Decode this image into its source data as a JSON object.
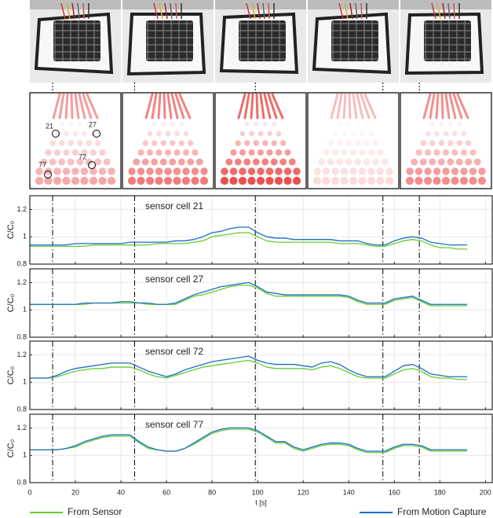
{
  "heatmap_labels": [
    "21",
    "27",
    "72",
    "77"
  ],
  "time_markers": [
    10,
    46,
    99,
    155,
    171
  ],
  "chart_data": [
    {
      "type": "line",
      "title": "sensor cell 21",
      "ylabel": "C/C₀",
      "x": [
        0,
        4,
        8,
        12,
        16,
        20,
        24,
        28,
        32,
        36,
        40,
        44,
        48,
        52,
        56,
        60,
        64,
        68,
        72,
        76,
        80,
        84,
        88,
        92,
        96,
        100,
        104,
        108,
        112,
        116,
        120,
        124,
        128,
        132,
        136,
        140,
        144,
        148,
        152,
        156,
        160,
        164,
        168,
        172,
        176,
        180,
        184,
        188,
        192
      ],
      "series": [
        {
          "name": "From Sensor",
          "color": "#66cc33",
          "values": [
            0.93,
            0.93,
            0.93,
            0.93,
            0.93,
            0.93,
            0.93,
            0.94,
            0.94,
            0.94,
            0.94,
            0.94,
            0.94,
            0.94,
            0.95,
            0.95,
            0.95,
            0.95,
            0.96,
            0.97,
            1.0,
            1.01,
            1.02,
            1.03,
            1.03,
            1.0,
            0.97,
            0.96,
            0.96,
            0.96,
            0.96,
            0.96,
            0.96,
            0.96,
            0.95,
            0.95,
            0.95,
            0.94,
            0.93,
            0.93,
            0.95,
            0.97,
            0.98,
            0.97,
            0.94,
            0.92,
            0.92,
            0.91,
            0.91
          ]
        },
        {
          "name": "From Motion Capture",
          "color": "#1a6fc4",
          "values": [
            0.94,
            0.94,
            0.94,
            0.94,
            0.94,
            0.95,
            0.95,
            0.95,
            0.95,
            0.95,
            0.95,
            0.96,
            0.96,
            0.96,
            0.96,
            0.96,
            0.97,
            0.97,
            0.98,
            1.0,
            1.03,
            1.04,
            1.06,
            1.07,
            1.07,
            1.03,
            1.0,
            0.99,
            0.99,
            0.98,
            0.98,
            0.98,
            0.98,
            0.98,
            0.97,
            0.97,
            0.97,
            0.95,
            0.94,
            0.94,
            0.97,
            0.99,
            1.0,
            0.99,
            0.96,
            0.95,
            0.94,
            0.94,
            0.94
          ]
        }
      ],
      "xlim": [
        0,
        203
      ],
      "xticks": [
        0,
        20,
        40,
        60,
        80,
        100,
        120,
        140,
        160,
        180,
        200
      ],
      "ylim": [
        0.8,
        1.3
      ],
      "yticks": [
        0.8,
        1,
        1.2
      ],
      "grid": true
    },
    {
      "type": "line",
      "title": "sensor cell 27",
      "ylabel": "C/C₀",
      "x": [
        0,
        4,
        8,
        12,
        16,
        20,
        24,
        28,
        32,
        36,
        40,
        44,
        48,
        52,
        56,
        60,
        64,
        68,
        72,
        76,
        80,
        84,
        88,
        92,
        96,
        100,
        104,
        108,
        112,
        116,
        120,
        124,
        128,
        132,
        136,
        140,
        144,
        148,
        152,
        156,
        160,
        164,
        168,
        172,
        176,
        180,
        184,
        188,
        192
      ],
      "series": [
        {
          "name": "From Sensor",
          "color": "#66cc33",
          "values": [
            1.04,
            1.04,
            1.04,
            1.04,
            1.04,
            1.04,
            1.04,
            1.05,
            1.05,
            1.05,
            1.05,
            1.05,
            1.05,
            1.04,
            1.04,
            1.04,
            1.04,
            1.07,
            1.1,
            1.11,
            1.13,
            1.15,
            1.17,
            1.18,
            1.18,
            1.16,
            1.12,
            1.1,
            1.1,
            1.1,
            1.1,
            1.1,
            1.1,
            1.1,
            1.1,
            1.09,
            1.06,
            1.04,
            1.04,
            1.04,
            1.07,
            1.08,
            1.09,
            1.06,
            1.03,
            1.03,
            1.03,
            1.03,
            1.03
          ]
        },
        {
          "name": "From Motion Capture",
          "color": "#1a6fc4",
          "values": [
            1.04,
            1.04,
            1.04,
            1.04,
            1.04,
            1.04,
            1.05,
            1.05,
            1.05,
            1.05,
            1.06,
            1.06,
            1.05,
            1.05,
            1.04,
            1.04,
            1.05,
            1.08,
            1.11,
            1.13,
            1.15,
            1.17,
            1.18,
            1.19,
            1.2,
            1.17,
            1.13,
            1.12,
            1.11,
            1.11,
            1.11,
            1.11,
            1.11,
            1.11,
            1.11,
            1.1,
            1.07,
            1.05,
            1.05,
            1.05,
            1.08,
            1.09,
            1.1,
            1.07,
            1.04,
            1.04,
            1.04,
            1.04,
            1.04
          ]
        }
      ],
      "xlim": [
        0,
        203
      ],
      "xticks": [
        0,
        20,
        40,
        60,
        80,
        100,
        120,
        140,
        160,
        180,
        200
      ],
      "ylim": [
        0.8,
        1.3
      ],
      "yticks": [
        0.8,
        1,
        1.2
      ],
      "grid": true
    },
    {
      "type": "line",
      "title": "sensor cell 72",
      "ylabel": "C/C₀",
      "x": [
        0,
        4,
        8,
        12,
        16,
        20,
        24,
        28,
        32,
        36,
        40,
        44,
        48,
        52,
        56,
        60,
        64,
        68,
        72,
        76,
        80,
        84,
        88,
        92,
        96,
        100,
        104,
        108,
        112,
        116,
        120,
        124,
        128,
        132,
        136,
        140,
        144,
        148,
        152,
        156,
        160,
        164,
        168,
        172,
        176,
        180,
        184,
        188,
        192
      ],
      "series": [
        {
          "name": "From Sensor",
          "color": "#66cc33",
          "values": [
            1.03,
            1.03,
            1.03,
            1.04,
            1.06,
            1.08,
            1.09,
            1.1,
            1.1,
            1.11,
            1.11,
            1.11,
            1.09,
            1.06,
            1.04,
            1.03,
            1.05,
            1.07,
            1.09,
            1.11,
            1.12,
            1.13,
            1.14,
            1.15,
            1.16,
            1.14,
            1.11,
            1.1,
            1.1,
            1.1,
            1.1,
            1.09,
            1.11,
            1.12,
            1.1,
            1.07,
            1.04,
            1.03,
            1.03,
            1.03,
            1.06,
            1.09,
            1.1,
            1.08,
            1.04,
            1.03,
            1.03,
            1.02,
            1.02
          ]
        },
        {
          "name": "From Motion Capture",
          "color": "#1a6fc4",
          "values": [
            1.03,
            1.03,
            1.03,
            1.05,
            1.08,
            1.1,
            1.11,
            1.12,
            1.13,
            1.14,
            1.14,
            1.14,
            1.11,
            1.08,
            1.06,
            1.04,
            1.06,
            1.09,
            1.11,
            1.13,
            1.15,
            1.16,
            1.17,
            1.18,
            1.19,
            1.16,
            1.14,
            1.13,
            1.13,
            1.13,
            1.12,
            1.11,
            1.14,
            1.15,
            1.13,
            1.09,
            1.06,
            1.04,
            1.04,
            1.04,
            1.08,
            1.12,
            1.13,
            1.1,
            1.06,
            1.05,
            1.04,
            1.04,
            1.04
          ]
        }
      ],
      "xlim": [
        0,
        203
      ],
      "xticks": [
        0,
        20,
        40,
        60,
        80,
        100,
        120,
        140,
        160,
        180,
        200
      ],
      "ylim": [
        0.8,
        1.3
      ],
      "yticks": [
        0.8,
        1,
        1.2
      ],
      "grid": true
    },
    {
      "type": "line",
      "title": "sensor cell 77",
      "ylabel": "C/C₀",
      "xlabel": "t [s]",
      "x": [
        0,
        4,
        8,
        12,
        16,
        20,
        24,
        28,
        32,
        36,
        40,
        44,
        48,
        52,
        56,
        60,
        64,
        68,
        72,
        76,
        80,
        84,
        88,
        92,
        96,
        100,
        104,
        108,
        112,
        116,
        120,
        124,
        128,
        132,
        136,
        140,
        144,
        148,
        152,
        156,
        160,
        164,
        168,
        172,
        176,
        180,
        184,
        188,
        192
      ],
      "series": [
        {
          "name": "From Sensor",
          "color": "#66cc33",
          "values": [
            1.04,
            1.04,
            1.04,
            1.04,
            1.05,
            1.06,
            1.09,
            1.11,
            1.13,
            1.14,
            1.14,
            1.14,
            1.09,
            1.05,
            1.04,
            1.03,
            1.03,
            1.05,
            1.08,
            1.12,
            1.16,
            1.18,
            1.19,
            1.19,
            1.19,
            1.17,
            1.13,
            1.09,
            1.09,
            1.05,
            1.03,
            1.05,
            1.07,
            1.08,
            1.08,
            1.07,
            1.04,
            1.02,
            1.02,
            1.02,
            1.05,
            1.07,
            1.07,
            1.06,
            1.03,
            1.03,
            1.03,
            1.03,
            1.03
          ]
        },
        {
          "name": "From Motion Capture",
          "color": "#1a6fc4",
          "values": [
            1.04,
            1.04,
            1.04,
            1.04,
            1.05,
            1.07,
            1.1,
            1.12,
            1.14,
            1.15,
            1.15,
            1.15,
            1.1,
            1.06,
            1.04,
            1.03,
            1.03,
            1.05,
            1.09,
            1.13,
            1.17,
            1.19,
            1.2,
            1.2,
            1.2,
            1.18,
            1.14,
            1.1,
            1.1,
            1.06,
            1.04,
            1.06,
            1.08,
            1.09,
            1.09,
            1.08,
            1.05,
            1.03,
            1.03,
            1.03,
            1.06,
            1.08,
            1.08,
            1.07,
            1.04,
            1.04,
            1.04,
            1.04,
            1.04
          ]
        }
      ],
      "xlim": [
        0,
        203
      ],
      "xticks": [
        0,
        20,
        40,
        60,
        80,
        100,
        120,
        140,
        160,
        180,
        200
      ],
      "ylim": [
        0.8,
        1.3
      ],
      "yticks": [
        0.8,
        1,
        1.2
      ],
      "grid": true
    }
  ]
}
